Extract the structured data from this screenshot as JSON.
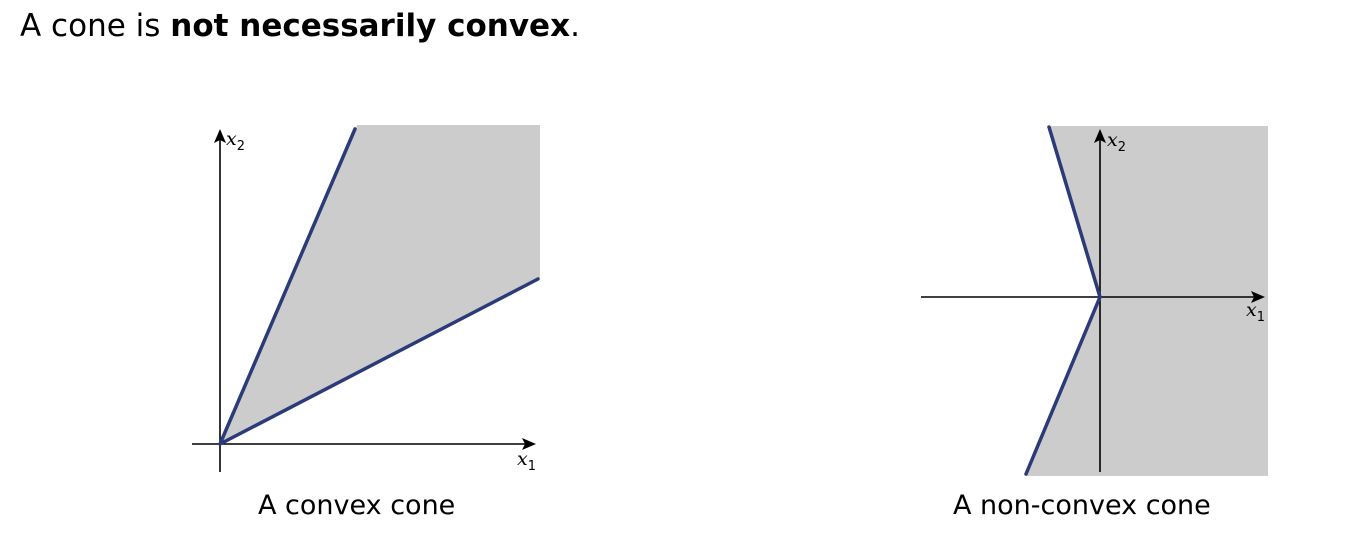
{
  "slide": {
    "title_prefix": "A cone is ",
    "title_bold": "not necessarily convex",
    "title_suffix": "."
  },
  "diagrams": [
    {
      "caption": "A convex cone",
      "x_axis_label": "x",
      "x_axis_subscript": "1",
      "y_axis_label": "x",
      "y_axis_subscript": "2"
    },
    {
      "caption": "A non-convex cone",
      "x_axis_label": "x",
      "x_axis_subscript": "1",
      "y_axis_label": "x",
      "y_axis_subscript": "2"
    }
  ],
  "colors": {
    "region_fill": "#cccccc",
    "boundary_ray": "#2b3a78",
    "axis": "#000000"
  }
}
